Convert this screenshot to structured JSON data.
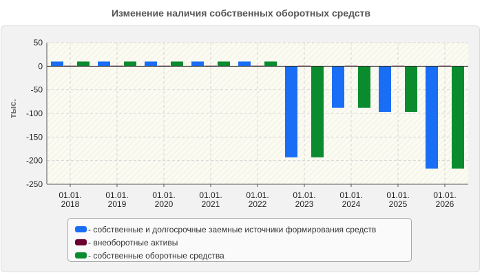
{
  "chart_data": {
    "type": "bar",
    "title": "Изменение наличия собственных оборотных средств",
    "ylabel": "тыс.",
    "xlabel": "",
    "ylim": [
      -250,
      50
    ],
    "yticks": [
      50,
      0,
      -50,
      -100,
      -150,
      -200,
      -250
    ],
    "grid": true,
    "legend_position": "bottom",
    "categories": [
      [
        "01.01.",
        "2018"
      ],
      [
        "01.01.",
        "2019"
      ],
      [
        "01.01.",
        "2020"
      ],
      [
        "01.01.",
        "2021"
      ],
      [
        "01.01.",
        "2022"
      ],
      [
        "01.01.",
        "2023"
      ],
      [
        "01.01.",
        "2024"
      ],
      [
        "01.01.",
        "2025"
      ],
      [
        "01.01.",
        "2026"
      ]
    ],
    "series": [
      {
        "name": "- собственные и долгосрочные заемные источники формирования средств",
        "color": "#1a6ef5",
        "values": [
          10,
          10,
          10,
          10,
          10,
          -193,
          -88,
          -97,
          -217
        ]
      },
      {
        "name": "- внеоборотные активы",
        "color": "#6b0030",
        "values": [
          1,
          1,
          1,
          1,
          1,
          1,
          1,
          1,
          1
        ]
      },
      {
        "name": "- собственные оборотные средства",
        "color": "#0a8c2e",
        "values": [
          10,
          10,
          10,
          10,
          10,
          -193,
          -88,
          -97,
          -217
        ]
      }
    ]
  }
}
